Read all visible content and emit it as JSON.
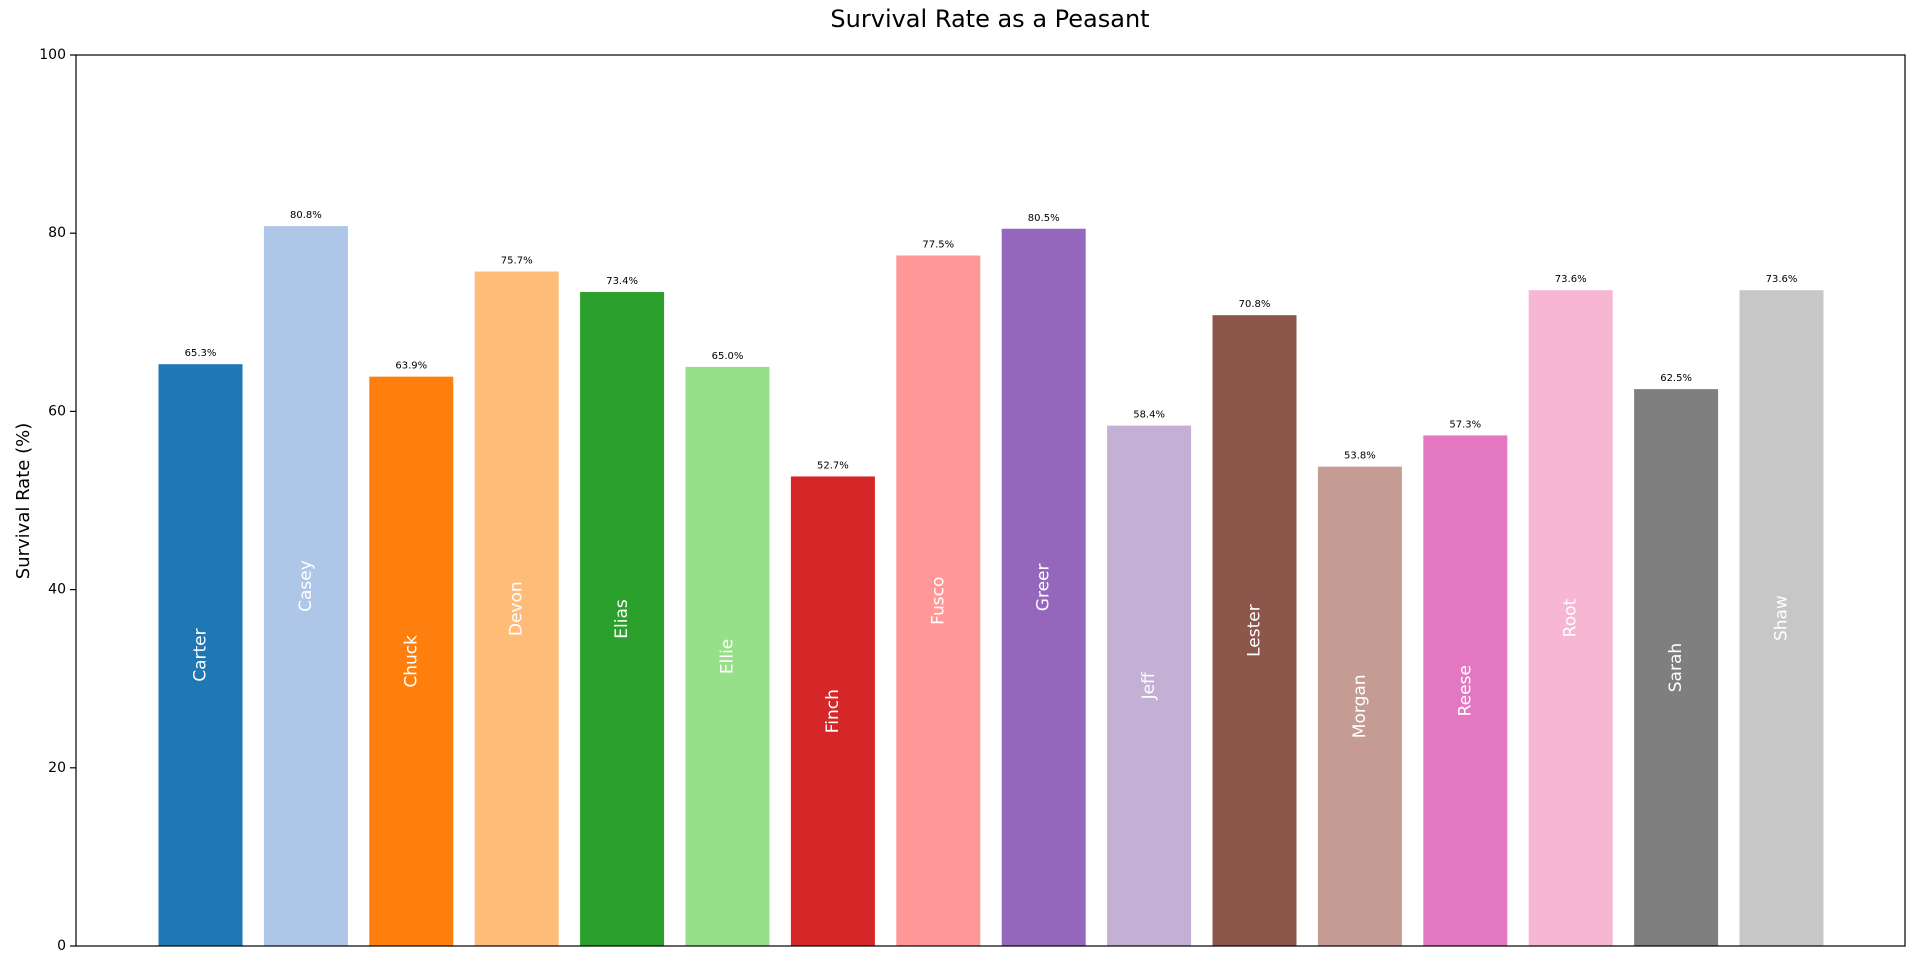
{
  "chart_data": {
    "type": "bar",
    "title": "Survival Rate as a Peasant",
    "xlabel": "",
    "ylabel": "Survival Rate (%)",
    "ylim": [
      0,
      100
    ],
    "yticks": [
      0,
      20,
      40,
      60,
      80,
      100
    ],
    "grid": false,
    "legend": "none",
    "categories": [
      "Carter",
      "Casey",
      "Chuck",
      "Devon",
      "Elias",
      "Ellie",
      "Finch",
      "Fusco",
      "Greer",
      "Jeff",
      "Lester",
      "Morgan",
      "Reese",
      "Root",
      "Sarah",
      "Shaw"
    ],
    "values": [
      65.3,
      80.8,
      63.9,
      75.7,
      73.4,
      65.0,
      52.7,
      77.5,
      80.5,
      58.4,
      70.8,
      53.8,
      57.3,
      73.6,
      62.5,
      73.6
    ],
    "value_labels": [
      "65.3%",
      "80.8%",
      "63.9%",
      "75.7%",
      "73.4%",
      "65.0%",
      "52.7%",
      "77.5%",
      "80.5%",
      "58.4%",
      "70.8%",
      "53.8%",
      "57.3%",
      "73.6%",
      "62.5%",
      "73.6%"
    ],
    "colors": [
      "#1f77b4",
      "#aec7e8",
      "#ff7f0e",
      "#ffbb78",
      "#2ca02c",
      "#98df8a",
      "#d62728",
      "#ff9896",
      "#9467bd",
      "#c5b0d5",
      "#8c564b",
      "#c49c94",
      "#e377c2",
      "#f7b6d2",
      "#7f7f7f",
      "#c7c7c7"
    ]
  }
}
